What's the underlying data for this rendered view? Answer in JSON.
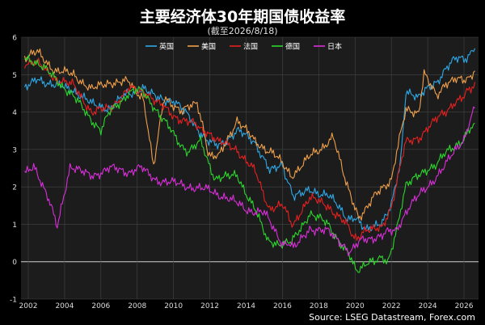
{
  "chart_data": {
    "type": "line",
    "title": "主要经济体30年期国债收益率",
    "subtitle": "(截至2026/8/18)",
    "source": "Source: LSEG Datastream, Forex.com",
    "xlim": [
      2001.6,
      2026.8
    ],
    "ylim": [
      -1,
      6
    ],
    "x_ticks": [
      "2002",
      "2004",
      "2006",
      "2008",
      "2010",
      "2012",
      "2014",
      "2016",
      "2018",
      "2020",
      "2022",
      "2024",
      "2026"
    ],
    "y_ticks": [
      "-1",
      "0",
      "1",
      "2",
      "3",
      "4",
      "5",
      "6"
    ],
    "grid": true,
    "legend_position": "top-center",
    "series": [
      {
        "name": "英国",
        "color": "#2ea8e6",
        "x": [
          2001.8,
          2002.5,
          2003.5,
          2004.5,
          2005.5,
          2006.5,
          2007.5,
          2008.3,
          2009,
          2010,
          2011,
          2011.8,
          2012.5,
          2013.5,
          2014.5,
          2015.3,
          2016,
          2016.6,
          2017.5,
          2018.5,
          2019.5,
          2020.1,
          2020.6,
          2021.5,
          2022,
          2022.5,
          2022.8,
          2023.5,
          2024,
          2024.5,
          2025,
          2025.5,
          2026,
          2026.6
        ],
        "y": [
          4.6,
          4.9,
          4.7,
          4.6,
          4.2,
          4.1,
          4.5,
          4.6,
          4.4,
          4.3,
          3.8,
          3.2,
          3.1,
          3.5,
          3.2,
          2.4,
          2.6,
          1.7,
          1.9,
          1.8,
          1.2,
          1.1,
          0.9,
          1.1,
          1.5,
          2.6,
          4.6,
          4.4,
          4.6,
          4.8,
          5.2,
          5.4,
          5.4,
          5.7
        ]
      },
      {
        "name": "美国",
        "color": "#f0a04b",
        "x": [
          2001.8,
          2002.5,
          2003.5,
          2004.5,
          2005.5,
          2006.5,
          2007.5,
          2008.3,
          2008.9,
          2009.5,
          2010.5,
          2011.3,
          2011.9,
          2012.5,
          2013.5,
          2014.5,
          2015.5,
          2016.5,
          2017.5,
          2018.8,
          2019.5,
          2020.2,
          2020.7,
          2021.5,
          2022,
          2022.8,
          2023.5,
          2023.8,
          2024.5,
          2025,
          2025.5,
          2026,
          2026.6
        ],
        "y": [
          5.4,
          5.6,
          5.1,
          5.0,
          4.6,
          4.8,
          4.8,
          4.4,
          2.6,
          4.4,
          4.0,
          4.3,
          2.9,
          2.8,
          3.8,
          3.2,
          2.9,
          2.3,
          2.8,
          3.3,
          2.1,
          1.2,
          1.5,
          2.0,
          2.2,
          4.1,
          4.0,
          5.0,
          4.4,
          4.8,
          4.9,
          4.8,
          5.1
        ]
      },
      {
        "name": "法国",
        "color": "#e62020",
        "x": [
          2001.8,
          2002.5,
          2003.5,
          2004.5,
          2005.5,
          2006.5,
          2007.5,
          2008.3,
          2009,
          2010,
          2011,
          2011.8,
          2012.5,
          2013.5,
          2014.5,
          2015.3,
          2016,
          2016.6,
          2017.5,
          2018.5,
          2019.5,
          2020.1,
          2020.6,
          2021.5,
          2022,
          2022.8,
          2023.5,
          2024,
          2024.5,
          2025,
          2025.5,
          2026,
          2026.6
        ],
        "y": [
          5.3,
          5.3,
          4.9,
          4.7,
          4.0,
          4.1,
          4.6,
          4.6,
          4.3,
          3.9,
          3.7,
          3.5,
          3.2,
          3.0,
          2.4,
          1.4,
          1.5,
          1.0,
          1.7,
          1.5,
          1.0,
          0.6,
          0.8,
          0.9,
          1.5,
          3.2,
          3.3,
          3.6,
          3.8,
          4.0,
          4.3,
          4.4,
          4.8
        ]
      },
      {
        "name": "德国",
        "color": "#2cd62c",
        "x": [
          2001.8,
          2002.5,
          2003.5,
          2004.5,
          2005.5,
          2006,
          2006.5,
          2007.5,
          2008.3,
          2009,
          2010,
          2010.8,
          2011.5,
          2012.3,
          2013.5,
          2014.5,
          2015.2,
          2016.5,
          2017.5,
          2018.5,
          2019.5,
          2020.1,
          2020.6,
          2021.2,
          2021.8,
          2022.3,
          2022.8,
          2023.5,
          2024,
          2024.5,
          2025,
          2025.5,
          2026,
          2026.6
        ],
        "y": [
          5.5,
          5.3,
          4.9,
          4.4,
          3.8,
          3.5,
          4.0,
          4.5,
          4.6,
          4.1,
          3.4,
          2.9,
          3.2,
          2.2,
          2.3,
          1.4,
          0.5,
          0.5,
          1.3,
          1.0,
          0.3,
          -0.2,
          -0.1,
          0.1,
          0.0,
          0.9,
          2.0,
          2.3,
          2.5,
          2.6,
          2.9,
          3.1,
          3.3,
          3.7
        ]
      },
      {
        "name": "日本",
        "color": "#d92fd9",
        "x": [
          2001.8,
          2002.3,
          2003.2,
          2003.6,
          2004.3,
          2005.5,
          2006.5,
          2007.5,
          2008.3,
          2009,
          2010,
          2011,
          2012,
          2013,
          2014,
          2015,
          2016,
          2016.6,
          2017.5,
          2018.5,
          2019.7,
          2020.5,
          2021.5,
          2022.3,
          2023,
          2024,
          2025,
          2026,
          2026.6
        ],
        "y": [
          2.4,
          2.6,
          1.6,
          1.0,
          2.5,
          2.3,
          2.5,
          2.4,
          2.5,
          2.2,
          2.1,
          2.0,
          1.9,
          1.7,
          1.4,
          1.3,
          0.5,
          0.4,
          0.9,
          0.8,
          0.3,
          0.6,
          0.7,
          0.9,
          1.5,
          2.0,
          2.6,
          3.3,
          4.1
        ]
      }
    ]
  }
}
